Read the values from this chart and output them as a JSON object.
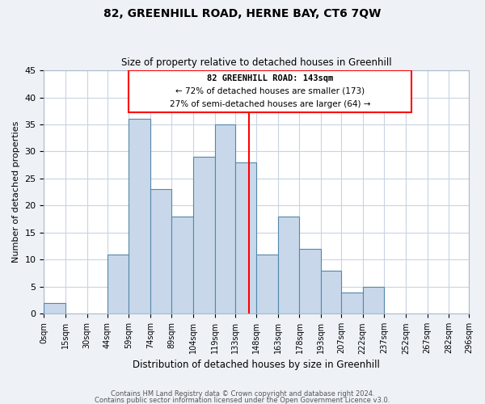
{
  "title": "82, GREENHILL ROAD, HERNE BAY, CT6 7QW",
  "subtitle": "Size of property relative to detached houses in Greenhill",
  "xlabel": "Distribution of detached houses by size in Greenhill",
  "ylabel": "Number of detached properties",
  "footer_line1": "Contains HM Land Registry data © Crown copyright and database right 2024.",
  "footer_line2": "Contains public sector information licensed under the Open Government Licence v3.0.",
  "bin_edges": [
    0,
    15,
    30,
    44,
    59,
    74,
    89,
    104,
    119,
    133,
    148,
    163,
    178,
    193,
    207,
    222,
    237,
    252,
    267,
    282,
    296
  ],
  "bin_labels": [
    "0sqm",
    "15sqm",
    "30sqm",
    "44sqm",
    "59sqm",
    "74sqm",
    "89sqm",
    "104sqm",
    "119sqm",
    "133sqm",
    "148sqm",
    "163sqm",
    "178sqm",
    "193sqm",
    "207sqm",
    "222sqm",
    "237sqm",
    "252sqm",
    "267sqm",
    "282sqm",
    "296sqm"
  ],
  "counts": [
    2,
    0,
    0,
    11,
    36,
    23,
    18,
    29,
    35,
    28,
    11,
    18,
    12,
    8,
    4,
    5,
    0,
    0,
    0,
    0
  ],
  "bar_color": "#c8d8ea",
  "bar_edge_color": "#5588aa",
  "reference_line_x": 143,
  "reference_line_color": "red",
  "annotation_text_line1": "82 GREENHILL ROAD: 143sqm",
  "annotation_text_line2": "← 72% of detached houses are smaller (173)",
  "annotation_text_line3": "27% of semi-detached houses are larger (64) →",
  "annotation_box_color": "red",
  "ylim": [
    0,
    45
  ],
  "background_color": "#eef2f7",
  "plot_background_color": "#ffffff",
  "grid_color": "#c8d4e4"
}
